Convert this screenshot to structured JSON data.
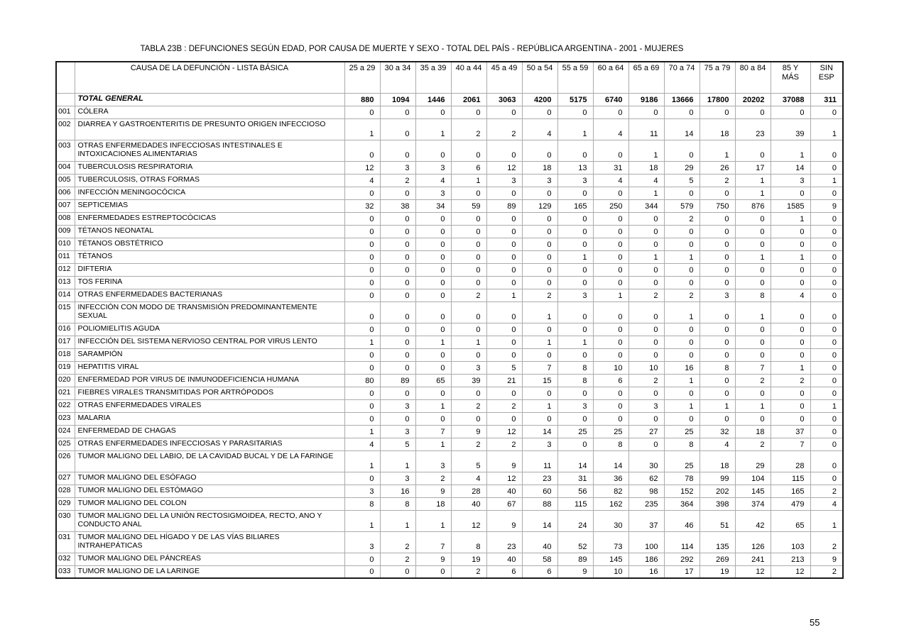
{
  "page": {
    "title": "TABLA 23B : DEFUNCIONES SEGÚN EDAD, POR CAUSA DE MUERTE Y SEXO - TOTAL DEL PAÍS - REPÚBLICA ARGENTINA - 2001 - MUJERES",
    "page_number": "55"
  },
  "table": {
    "cause_header": "CAUSA DE LA DEFUNCIÓN - LISTA BÁSICA",
    "age_columns": [
      "25 a 29",
      "30 a 34",
      "35 a 39",
      "40 a 44",
      "45 a 49",
      "50 a 54",
      "55 a 59",
      "60 a 64",
      "65 a 69",
      "70 a 74",
      "75 a 79",
      "80 a 84",
      "85 Y\nMÁS",
      "SIN\nESP"
    ],
    "total_row": {
      "label": "TOTAL GENERAL",
      "values": [
        880,
        1094,
        1446,
        2061,
        3063,
        4200,
        5175,
        6740,
        9186,
        13666,
        17800,
        20202,
        37088,
        311
      ]
    },
    "rows": [
      {
        "code": "001",
        "name": "CÓLERA",
        "values": [
          0,
          0,
          0,
          0,
          0,
          0,
          0,
          0,
          0,
          0,
          0,
          0,
          0,
          0
        ]
      },
      {
        "code": "002",
        "name": "DIARREA Y GASTROENTERITIS DE PRESUNTO ORIGEN INFECCIOSO",
        "tall": true,
        "values": [
          1,
          0,
          1,
          2,
          2,
          4,
          1,
          4,
          11,
          14,
          18,
          23,
          39,
          1
        ]
      },
      {
        "code": "003",
        "name": "OTRAS ENFERMEDADES INFECCIOSAS INTESTINALES E\nINTOXICACIONES ALIMENTARIAS",
        "tall": true,
        "values": [
          0,
          0,
          0,
          0,
          0,
          0,
          0,
          0,
          1,
          0,
          1,
          0,
          1,
          0
        ]
      },
      {
        "code": "004",
        "name": "TUBERCULOSIS RESPIRATORIA",
        "values": [
          12,
          3,
          3,
          6,
          12,
          18,
          13,
          31,
          18,
          29,
          26,
          17,
          14,
          0
        ]
      },
      {
        "code": "005",
        "name": "TUBERCULOSIS, OTRAS FORMAS",
        "values": [
          4,
          2,
          4,
          1,
          3,
          3,
          3,
          4,
          4,
          5,
          2,
          1,
          3,
          1
        ]
      },
      {
        "code": "006",
        "name": "INFECCIÓN MENINGOCÓCICA",
        "values": [
          0,
          0,
          3,
          0,
          0,
          0,
          0,
          0,
          1,
          0,
          0,
          1,
          0,
          0
        ]
      },
      {
        "code": "007",
        "name": "SEPTICEMIAS",
        "values": [
          32,
          38,
          34,
          59,
          89,
          129,
          165,
          250,
          344,
          579,
          750,
          876,
          1585,
          9
        ]
      },
      {
        "code": "008",
        "name": "ENFERMEDADES ESTREPTOCÓCICAS",
        "values": [
          0,
          0,
          0,
          0,
          0,
          0,
          0,
          0,
          0,
          2,
          0,
          0,
          1,
          0
        ]
      },
      {
        "code": "009",
        "name": "TÉTANOS NEONATAL",
        "values": [
          0,
          0,
          0,
          0,
          0,
          0,
          0,
          0,
          0,
          0,
          0,
          0,
          0,
          0
        ]
      },
      {
        "code": "010",
        "name": "TÉTANOS OBSTÉTRICO",
        "values": [
          0,
          0,
          0,
          0,
          0,
          0,
          0,
          0,
          0,
          0,
          0,
          0,
          0,
          0
        ]
      },
      {
        "code": "011",
        "name": "TÉTANOS",
        "values": [
          0,
          0,
          0,
          0,
          0,
          0,
          1,
          0,
          1,
          1,
          0,
          1,
          1,
          0
        ]
      },
      {
        "code": "012",
        "name": "DIFTERIA",
        "values": [
          0,
          0,
          0,
          0,
          0,
          0,
          0,
          0,
          0,
          0,
          0,
          0,
          0,
          0
        ]
      },
      {
        "code": "013",
        "name": "TOS FERINA",
        "values": [
          0,
          0,
          0,
          0,
          0,
          0,
          0,
          0,
          0,
          0,
          0,
          0,
          0,
          0
        ]
      },
      {
        "code": "014",
        "name": "OTRAS ENFERMEDADES BACTERIANAS",
        "values": [
          0,
          0,
          0,
          2,
          1,
          2,
          3,
          1,
          2,
          2,
          3,
          8,
          4,
          0
        ]
      },
      {
        "code": "015",
        "name": "INFECCIÓN CON MODO DE TRANSMISIÓN PREDOMINANTEMENTE\nSEXUAL",
        "tall": true,
        "values": [
          0,
          0,
          0,
          0,
          0,
          1,
          0,
          0,
          0,
          1,
          0,
          1,
          0,
          0
        ]
      },
      {
        "code": "016",
        "name": "POLIOMIELITIS AGUDA",
        "values": [
          0,
          0,
          0,
          0,
          0,
          0,
          0,
          0,
          0,
          0,
          0,
          0,
          0,
          0
        ]
      },
      {
        "code": "017",
        "name": "INFECCIÓN DEL SISTEMA NERVIOSO CENTRAL POR VIRUS LENTO",
        "values": [
          1,
          0,
          1,
          1,
          0,
          1,
          1,
          0,
          0,
          0,
          0,
          0,
          0,
          0
        ]
      },
      {
        "code": "018",
        "name": "SARAMPIÓN",
        "values": [
          0,
          0,
          0,
          0,
          0,
          0,
          0,
          0,
          0,
          0,
          0,
          0,
          0,
          0
        ]
      },
      {
        "code": "019",
        "name": "HEPATITIS VIRAL",
        "values": [
          0,
          0,
          0,
          3,
          5,
          7,
          8,
          10,
          10,
          16,
          8,
          7,
          1,
          0
        ]
      },
      {
        "code": "020",
        "name": "ENFERMEDAD POR VIRUS DE INMUNODEFICIENCIA HUMANA",
        "values": [
          80,
          89,
          65,
          39,
          21,
          15,
          8,
          6,
          2,
          1,
          0,
          2,
          2,
          0
        ]
      },
      {
        "code": "021",
        "name": "FIEBRES VIRALES TRANSMITIDAS POR ARTRÓPODOS",
        "values": [
          0,
          0,
          0,
          0,
          0,
          0,
          0,
          0,
          0,
          0,
          0,
          0,
          0,
          0
        ]
      },
      {
        "code": "022",
        "name": "OTRAS ENFERMEDADES VIRALES",
        "values": [
          0,
          3,
          1,
          2,
          2,
          1,
          3,
          0,
          3,
          1,
          1,
          1,
          0,
          1
        ]
      },
      {
        "code": "023",
        "name": "MALARIA",
        "values": [
          0,
          0,
          0,
          0,
          0,
          0,
          0,
          0,
          0,
          0,
          0,
          0,
          0,
          0
        ]
      },
      {
        "code": "024",
        "name": "ENFERMEDAD DE CHAGAS",
        "values": [
          1,
          3,
          7,
          9,
          12,
          14,
          25,
          25,
          27,
          25,
          32,
          18,
          37,
          0
        ]
      },
      {
        "code": "025",
        "name": "OTRAS ENFERMEDADES INFECCIOSAS Y PARASITARIAS",
        "values": [
          4,
          5,
          1,
          2,
          2,
          3,
          0,
          8,
          0,
          8,
          4,
          2,
          7,
          0
        ]
      },
      {
        "code": "026",
        "name": "TUMOR MALIGNO DEL LABIO, DE LA CAVIDAD BUCAL Y DE LA FARINGE",
        "tall": true,
        "values": [
          1,
          1,
          3,
          5,
          9,
          11,
          14,
          14,
          30,
          25,
          18,
          29,
          28,
          0
        ]
      },
      {
        "code": "027",
        "name": "TUMOR MALIGNO DEL ESÓFAGO",
        "values": [
          0,
          3,
          2,
          4,
          12,
          23,
          31,
          36,
          62,
          78,
          99,
          104,
          115,
          0
        ]
      },
      {
        "code": "028",
        "name": "TUMOR MALIGNO DEL ESTÓMAGO",
        "values": [
          3,
          16,
          9,
          28,
          40,
          60,
          56,
          82,
          98,
          152,
          202,
          145,
          165,
          2
        ]
      },
      {
        "code": "029",
        "name": "TUMOR MALIGNO DEL COLON",
        "values": [
          8,
          8,
          18,
          40,
          67,
          88,
          115,
          162,
          235,
          364,
          398,
          374,
          479,
          4
        ]
      },
      {
        "code": "030",
        "name": "TUMOR MALIGNO DEL LA  UNIÓN RECTOSIGMOIDEA, RECTO, ANO Y\nCONDUCTO ANAL",
        "tall": true,
        "values": [
          1,
          1,
          1,
          12,
          9,
          14,
          24,
          30,
          37,
          46,
          51,
          42,
          65,
          1
        ]
      },
      {
        "code": "031",
        "name": "TUMOR MALIGNO DEL  HÍGADO Y DE LAS VÍAS BILIARES\nINTRAHEPÁTICAS",
        "tall": true,
        "values": [
          3,
          2,
          7,
          8,
          23,
          40,
          52,
          73,
          100,
          114,
          135,
          126,
          103,
          2
        ]
      },
      {
        "code": "032",
        "name": "TUMOR MALIGNO DEL PÁNCREAS",
        "values": [
          0,
          2,
          9,
          19,
          40,
          58,
          89,
          145,
          186,
          292,
          269,
          241,
          213,
          9
        ]
      },
      {
        "code": "033",
        "name": "TUMOR MALIGNO DE LA LARINGE",
        "values": [
          0,
          0,
          0,
          2,
          6,
          6,
          9,
          10,
          16,
          17,
          19,
          12,
          12,
          2
        ]
      }
    ]
  }
}
